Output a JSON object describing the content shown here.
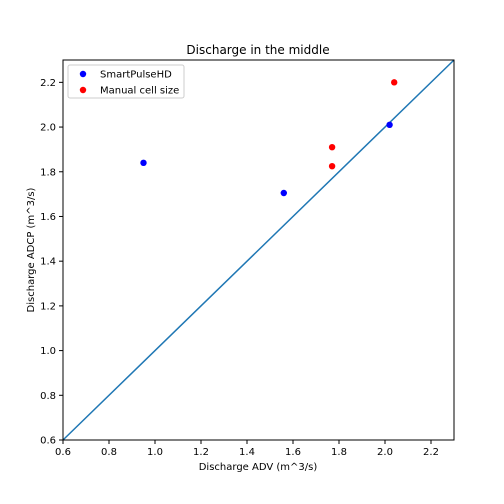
{
  "chart_data": {
    "type": "scatter",
    "title": "Discharge in the middle",
    "xlabel": "Discharge ADV (m^3/s)",
    "ylabel": "Discharge ADCP (m^3/s)",
    "xlim": [
      0.6,
      2.3
    ],
    "ylim": [
      0.6,
      2.3
    ],
    "xticks": [
      "0.6",
      "0.8",
      "1.0",
      "1.2",
      "1.4",
      "1.6",
      "1.8",
      "2.0",
      "2.2"
    ],
    "yticks": [
      "0.6",
      "0.8",
      "1.0",
      "1.2",
      "1.4",
      "1.6",
      "1.8",
      "2.0",
      "2.2"
    ],
    "grid": false,
    "legend_position": "top-left",
    "series": [
      {
        "name": "SmartPulseHD",
        "color": "#0000ff",
        "points": [
          [
            0.95,
            1.84
          ],
          [
            1.56,
            1.705
          ],
          [
            2.02,
            2.01
          ]
        ]
      },
      {
        "name": "Manual cell size",
        "color": "#ff0000",
        "points": [
          [
            1.77,
            1.91
          ],
          [
            1.77,
            1.825
          ],
          [
            2.04,
            2.2
          ]
        ]
      }
    ],
    "reference_line": {
      "color": "#1f77b4",
      "from": [
        0.6,
        0.6
      ],
      "to": [
        2.3,
        2.3
      ]
    }
  }
}
